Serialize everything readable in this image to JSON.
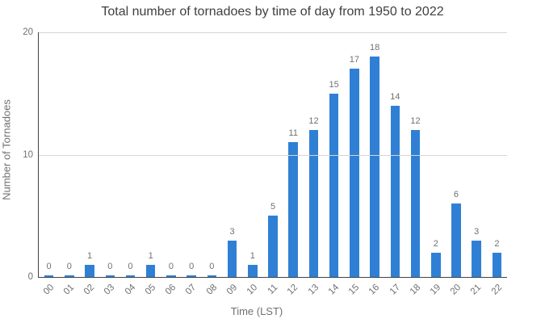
{
  "chart_data": {
    "type": "bar",
    "title": "Total number of tornadoes by time of day from 1950 to 2022",
    "xlabel": "Time (LST)",
    "ylabel": "Number of Tornadoes",
    "categories": [
      "00",
      "01",
      "02",
      "03",
      "04",
      "05",
      "06",
      "07",
      "08",
      "09",
      "10",
      "11",
      "12",
      "13",
      "14",
      "15",
      "16",
      "17",
      "18",
      "19",
      "20",
      "21",
      "22"
    ],
    "values": [
      0,
      0,
      1,
      0,
      0,
      1,
      0,
      0,
      0,
      3,
      1,
      5,
      11,
      12,
      15,
      17,
      18,
      14,
      12,
      2,
      6,
      3,
      2
    ],
    "ylim": [
      0,
      20
    ],
    "yticks": [
      0,
      10,
      20
    ],
    "grid": true,
    "legend": false,
    "data_labels": true
  },
  "colors": {
    "bar": "#2f80d5",
    "title_text": "#3f3f3f",
    "tick_text": "#707070",
    "gridline": "#d6d6d6",
    "axis_line": "#424242",
    "background": "#ffffff"
  }
}
